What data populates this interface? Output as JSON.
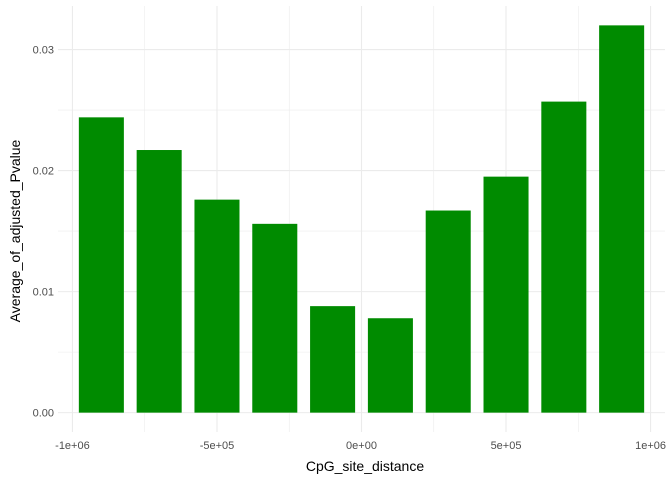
{
  "chart_data": {
    "type": "bar",
    "xlabel": "CpG_site_distance",
    "ylabel": "Average_of_adjusted_Pvalue",
    "x": [
      -900000,
      -700000,
      -500000,
      -300000,
      -100000,
      100000,
      300000,
      500000,
      700000,
      900000
    ],
    "values": [
      0.0244,
      0.0217,
      0.0176,
      0.0156,
      0.0088,
      0.0078,
      0.0167,
      0.0195,
      0.0257,
      0.032
    ],
    "bar_width": 180000,
    "xlim": [
      -1050000,
      1050000
    ],
    "ylim": [
      -0.0016,
      0.0336
    ],
    "x_ticks": [
      -1000000,
      -500000,
      0,
      500000,
      1000000
    ],
    "x_tick_labels": [
      "-1e+06",
      "-5e+05",
      "0e+00",
      "5e+05",
      "1e+06"
    ],
    "y_ticks": [
      0,
      0.01,
      0.02,
      0.03
    ],
    "y_tick_labels": [
      "0.00",
      "0.01",
      "0.02",
      "0.03"
    ],
    "grid": true,
    "bar_color": "#008B00",
    "grid_color": "#EBEBEB"
  }
}
